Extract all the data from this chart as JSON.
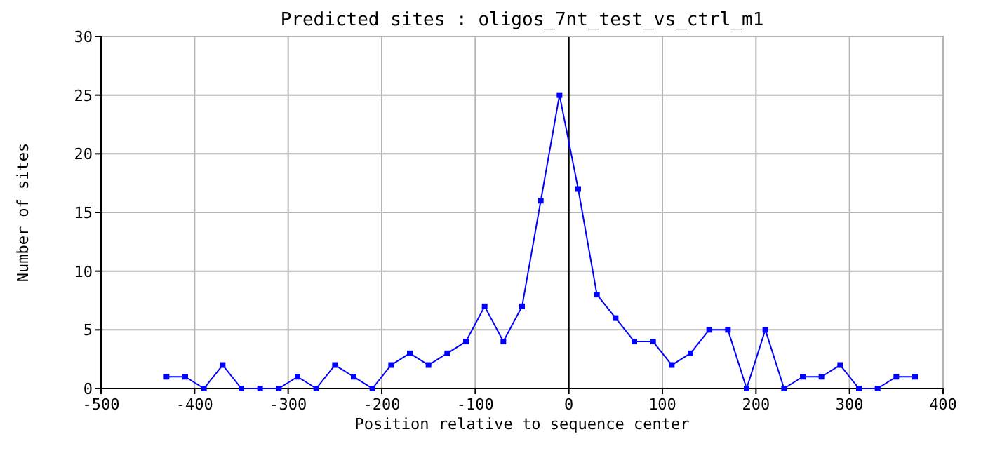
{
  "chart_data": {
    "type": "line",
    "title": "Predicted sites : oligos_7nt_test_vs_ctrl_m1",
    "xlabel": "Position relative to sequence center",
    "ylabel": "Number of sites",
    "x": [
      -430,
      -410,
      -390,
      -370,
      -350,
      -330,
      -310,
      -290,
      -270,
      -250,
      -230,
      -210,
      -190,
      -170,
      -150,
      -130,
      -110,
      -90,
      -70,
      -50,
      -30,
      -10,
      10,
      30,
      50,
      70,
      90,
      110,
      130,
      150,
      170,
      190,
      210,
      230,
      250,
      270,
      290,
      310,
      330,
      350,
      370
    ],
    "series": [
      {
        "color": "#0000ff",
        "values": [
          1,
          1,
          0,
          2,
          0,
          0,
          0,
          1,
          0,
          2,
          1,
          0,
          2,
          3,
          2,
          3,
          4,
          7,
          4,
          7,
          16,
          25,
          17,
          8,
          6,
          4,
          4,
          2,
          3,
          5,
          5,
          0,
          5,
          0,
          1,
          1,
          2,
          0,
          0,
          1,
          1
        ]
      }
    ],
    "xlim": [
      -500,
      400
    ],
    "xticks": [
      -500,
      -400,
      -300,
      -200,
      -100,
      0,
      100,
      200,
      300,
      400
    ],
    "ylim": [
      0,
      30
    ],
    "yticks": [
      0,
      5,
      10,
      15,
      20,
      25,
      30
    ],
    "grid": true,
    "marker": "square",
    "line_style": "solid",
    "ref_lines": [
      {
        "axis": "x",
        "value": 0,
        "color": "#000000"
      }
    ]
  }
}
